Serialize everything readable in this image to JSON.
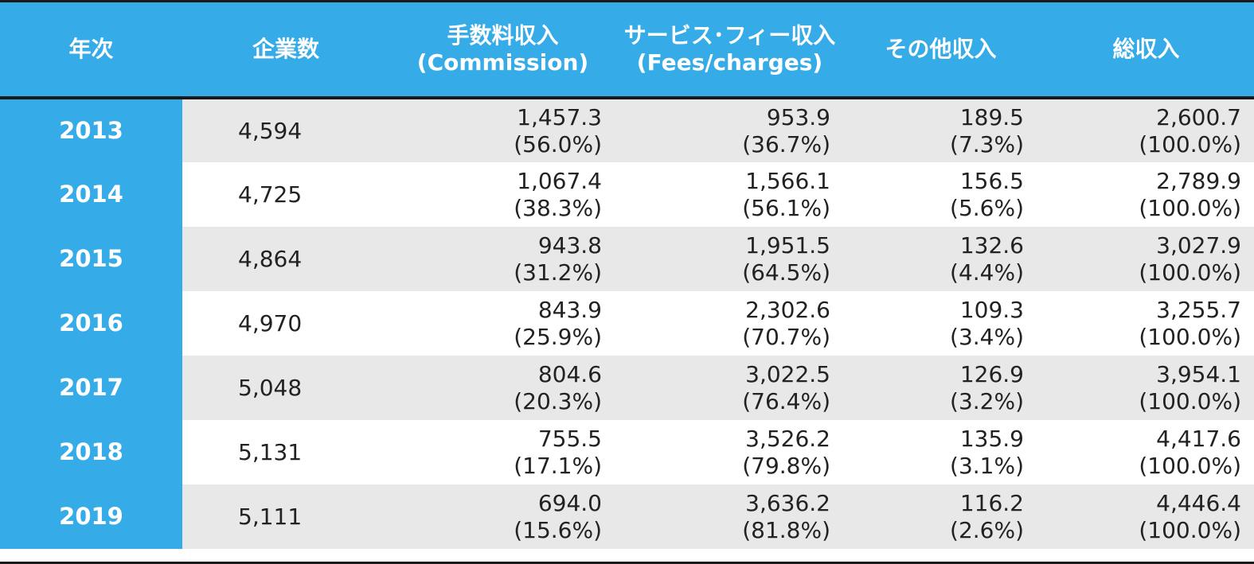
{
  "chart_data": {
    "type": "table",
    "columns": [
      {
        "line1": "年次",
        "line2": ""
      },
      {
        "line1": "企業数",
        "line2": ""
      },
      {
        "line1": "手数料収入",
        "line2": "(Commission)"
      },
      {
        "line1": "サービス･フィー収入",
        "line2": "(Fees/charges)"
      },
      {
        "line1": "その他収入",
        "line2": ""
      },
      {
        "line1": "総収入",
        "line2": ""
      }
    ],
    "rows": [
      {
        "year": "2013",
        "companies": "4,594",
        "commission": {
          "value": "1,457.3",
          "pct": "(56.0%)"
        },
        "fees": {
          "value": "953.9",
          "pct": "(36.7%)"
        },
        "other": {
          "value": "189.5",
          "pct": "(7.3%)"
        },
        "total": {
          "value": "2,600.7",
          "pct": "(100.0%)"
        }
      },
      {
        "year": "2014",
        "companies": "4,725",
        "commission": {
          "value": "1,067.4",
          "pct": "(38.3%)"
        },
        "fees": {
          "value": "1,566.1",
          "pct": "(56.1%)"
        },
        "other": {
          "value": "156.5",
          "pct": "(5.6%)"
        },
        "total": {
          "value": "2,789.9",
          "pct": "(100.0%)"
        }
      },
      {
        "year": "2015",
        "companies": "4,864",
        "commission": {
          "value": "943.8",
          "pct": "(31.2%)"
        },
        "fees": {
          "value": "1,951.5",
          "pct": "(64.5%)"
        },
        "other": {
          "value": "132.6",
          "pct": "(4.4%)"
        },
        "total": {
          "value": "3,027.9",
          "pct": "(100.0%)"
        }
      },
      {
        "year": "2016",
        "companies": "4,970",
        "commission": {
          "value": "843.9",
          "pct": "(25.9%)"
        },
        "fees": {
          "value": "2,302.6",
          "pct": "(70.7%)"
        },
        "other": {
          "value": "109.3",
          "pct": "(3.4%)"
        },
        "total": {
          "value": "3,255.7",
          "pct": "(100.0%)"
        }
      },
      {
        "year": "2017",
        "companies": "5,048",
        "commission": {
          "value": "804.6",
          "pct": "(20.3%)"
        },
        "fees": {
          "value": "3,022.5",
          "pct": "(76.4%)"
        },
        "other": {
          "value": "126.9",
          "pct": "(3.2%)"
        },
        "total": {
          "value": "3,954.1",
          "pct": "(100.0%)"
        }
      },
      {
        "year": "2018",
        "companies": "5,131",
        "commission": {
          "value": "755.5",
          "pct": "(17.1%)"
        },
        "fees": {
          "value": "3,526.2",
          "pct": "(79.8%)"
        },
        "other": {
          "value": "135.9",
          "pct": "(3.1%)"
        },
        "total": {
          "value": "4,417.6",
          "pct": "(100.0%)"
        }
      },
      {
        "year": "2019",
        "companies": "5,111",
        "commission": {
          "value": "694.0",
          "pct": "(15.6%)"
        },
        "fees": {
          "value": "3,636.2",
          "pct": "(81.8%)"
        },
        "other": {
          "value": "116.2",
          "pct": "(2.6%)"
        },
        "total": {
          "value": "4,446.4",
          "pct": "(100.0%)"
        }
      }
    ],
    "colors": {
      "header": "#35abe8",
      "header_text": "#ffffff",
      "shaded_row": "#e8e8e8",
      "border": "#1a1a1a",
      "text": "#222222"
    }
  }
}
